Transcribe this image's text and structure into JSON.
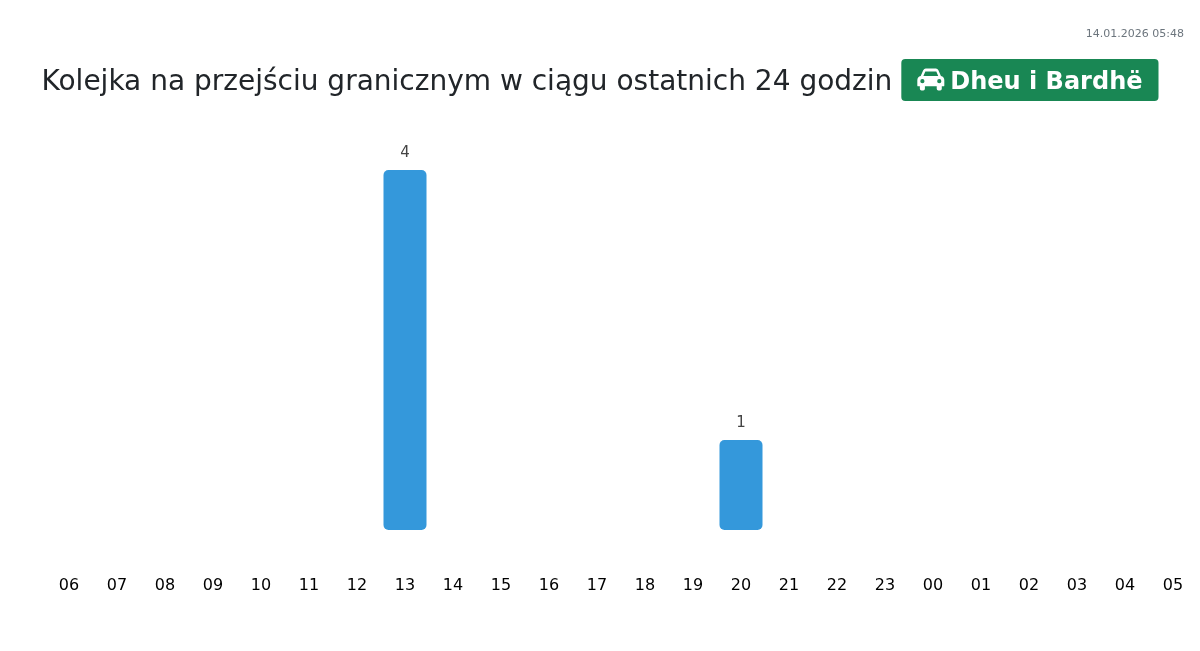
{
  "chart_data": {
    "type": "bar",
    "title": "Kolejka na przejściu granicznym w ciągu ostatnich 24 godzin",
    "subtitle": "Dheu i Bardhë",
    "annotations": [
      "14.01.2026 05:48"
    ],
    "categories": [
      "06",
      "07",
      "08",
      "09",
      "10",
      "11",
      "12",
      "13",
      "14",
      "15",
      "16",
      "17",
      "18",
      "19",
      "20",
      "21",
      "22",
      "23",
      "00",
      "01",
      "02",
      "03",
      "04",
      "05"
    ],
    "values": [
      0,
      0,
      0,
      0,
      0,
      0,
      0,
      4,
      0,
      0,
      0,
      0,
      0,
      0,
      1,
      0,
      0,
      0,
      0,
      0,
      0,
      0,
      0,
      0
    ],
    "value_labels": [
      null,
      null,
      null,
      null,
      null,
      null,
      null,
      "4",
      null,
      null,
      null,
      null,
      null,
      null,
      "1",
      null,
      null,
      null,
      null,
      null,
      null,
      null,
      null,
      null
    ],
    "color": "#3498db"
  }
}
